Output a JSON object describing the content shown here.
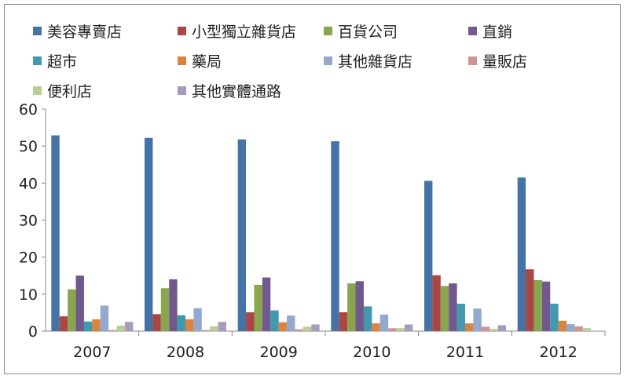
{
  "chart_data": {
    "type": "bar",
    "categories": [
      "2007",
      "2008",
      "2009",
      "2010",
      "2011",
      "2012"
    ],
    "ylim": [
      0,
      60
    ],
    "yticks": [
      "0",
      "10",
      "20",
      "30",
      "40",
      "50",
      "60"
    ],
    "grid": false,
    "legend": "top",
    "series": [
      {
        "name": "美容專賣店",
        "color": "#4572A7",
        "values": [
          52.9,
          52.2,
          51.8,
          51.3,
          40.6,
          41.5
        ]
      },
      {
        "name": "小型獨立雜貨店",
        "color": "#AA4643",
        "values": [
          4.0,
          4.6,
          5.1,
          5.1,
          15.1,
          16.7
        ]
      },
      {
        "name": "百貨公司",
        "color": "#89A54E",
        "values": [
          11.3,
          11.6,
          12.5,
          12.9,
          12.2,
          13.8
        ]
      },
      {
        "name": "直銷",
        "color": "#71588F",
        "values": [
          15.0,
          14.0,
          14.5,
          13.5,
          12.9,
          13.4
        ]
      },
      {
        "name": "超市",
        "color": "#4198AF",
        "values": [
          2.6,
          4.3,
          5.6,
          6.7,
          7.4,
          7.4
        ]
      },
      {
        "name": "藥局",
        "color": "#DB843D",
        "values": [
          3.2,
          3.2,
          2.4,
          2.1,
          2.1,
          2.8
        ]
      },
      {
        "name": "其他雜貨店",
        "color": "#93A9CF",
        "values": [
          6.9,
          6.2,
          4.2,
          4.5,
          6.1,
          1.9
        ]
      },
      {
        "name": "量販店",
        "color": "#D19392",
        "values": [
          0.3,
          0.3,
          0.5,
          0.8,
          1.2,
          1.3
        ]
      },
      {
        "name": "便利店",
        "color": "#B9CD96",
        "values": [
          1.5,
          1.3,
          1.2,
          0.8,
          0.6,
          0.8
        ]
      },
      {
        "name": "其他實體通路",
        "color": "#A99BBD",
        "values": [
          2.5,
          2.5,
          1.8,
          1.8,
          1.6,
          0
        ]
      }
    ]
  }
}
